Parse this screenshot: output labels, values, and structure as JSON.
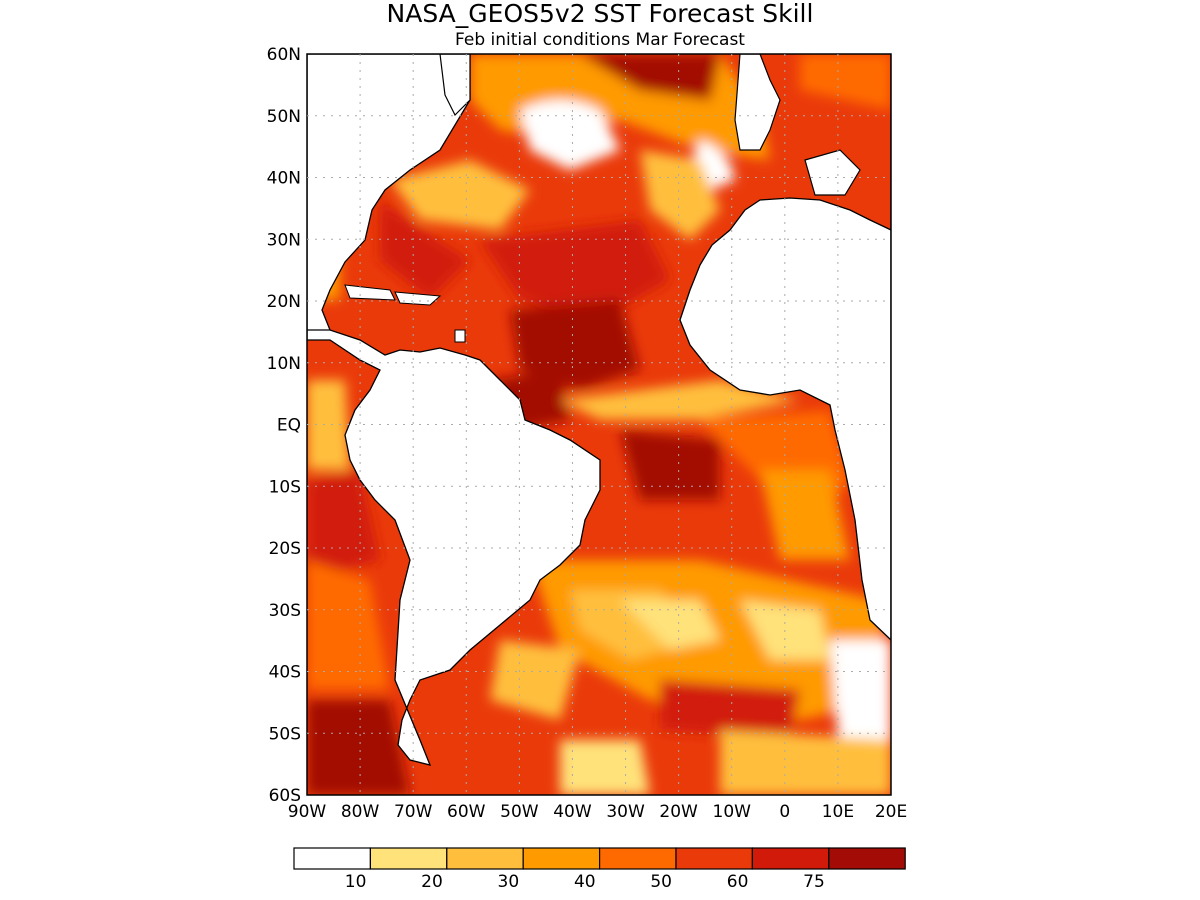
{
  "title": "NASA_GEOS5v2  SST Forecast Skill",
  "subtitle": "Feb initial conditions  Mar Forecast",
  "map": {
    "region": "Atlantic Ocean",
    "lon_range": [
      -90,
      20
    ],
    "lat_range": [
      -60,
      60
    ],
    "lat_labels": [
      "60N",
      "50N",
      "40N",
      "30N",
      "20N",
      "10N",
      "EQ",
      "10S",
      "20S",
      "30S",
      "40S",
      "50S",
      "60S"
    ],
    "lon_labels": [
      "90W",
      "80W",
      "70W",
      "60W",
      "50W",
      "40W",
      "30W",
      "20W",
      "10W",
      "0",
      "10E",
      "20E"
    ],
    "grid": "dotted"
  },
  "legend": {
    "colors": [
      "#ffffff",
      "#ffe27a",
      "#ffbf3c",
      "#ff9a00",
      "#ff6a00",
      "#ea3a0a",
      "#d21a0a",
      "#a30c06"
    ],
    "labels": [
      "10",
      "20",
      "30",
      "40",
      "50",
      "60",
      "75"
    ]
  },
  "colors": {
    "land": "#ffffff",
    "coast": "#000000",
    "grid": "#aaaaaa"
  }
}
